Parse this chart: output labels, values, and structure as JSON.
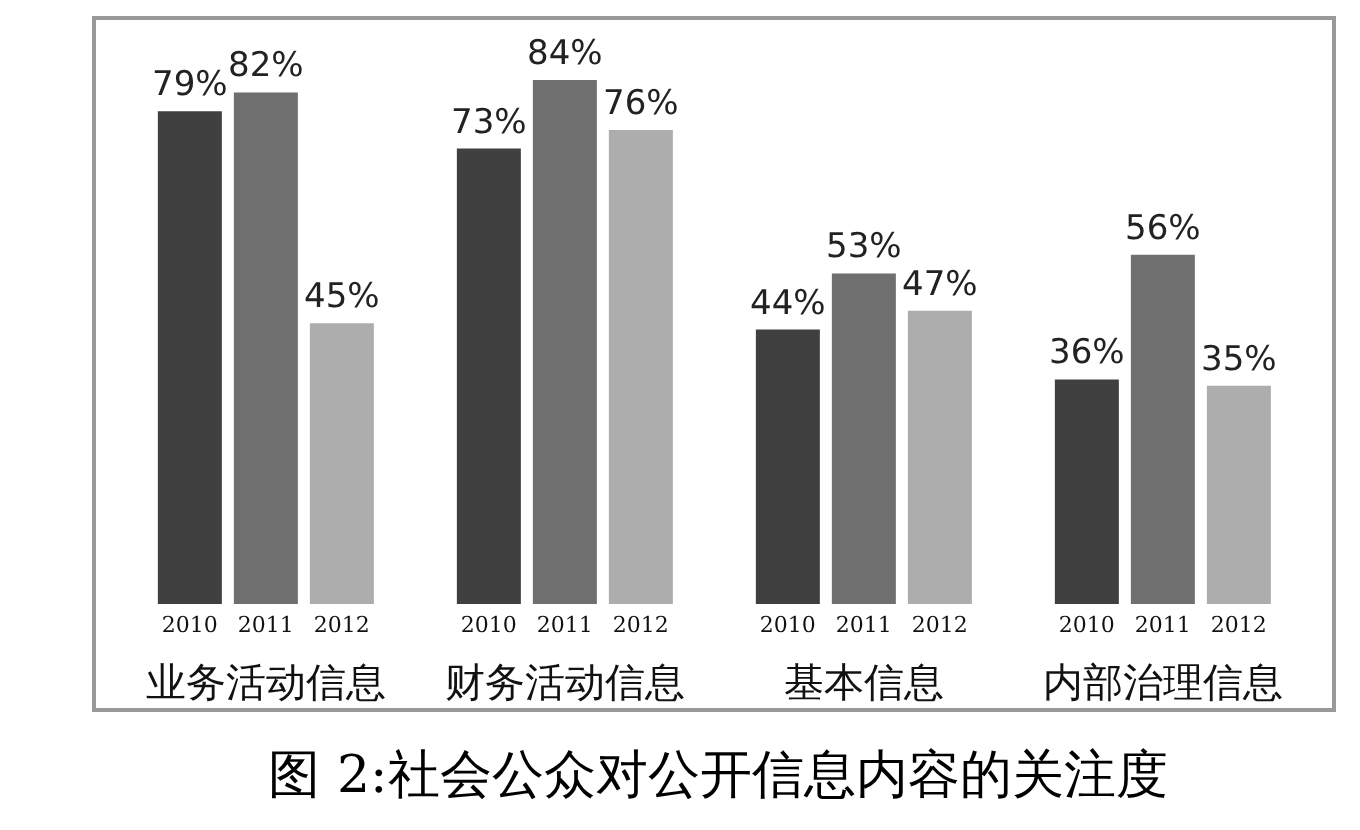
{
  "chart_data": {
    "type": "bar",
    "title": "图 2:社会公众对公开信息内容的关注度",
    "categories": [
      "业务活动信息",
      "财务活动信息",
      "基本信息",
      "内部治理信息"
    ],
    "series": [
      {
        "name": "2010",
        "color": "#404040",
        "values": [
          79,
          73,
          44,
          36
        ],
        "value_labels": [
          "79%",
          "73%",
          "44%",
          "36%"
        ]
      },
      {
        "name": "2011",
        "color": "#6f6f6f",
        "values": [
          82,
          84,
          53,
          56
        ],
        "value_labels": [
          "82%",
          "84%",
          "53%",
          "56%"
        ]
      },
      {
        "name": "2012",
        "color": "#adadad",
        "values": [
          45,
          76,
          47,
          35
        ],
        "value_labels": [
          "45%",
          "76%",
          "47%",
          "35%"
        ]
      }
    ]
  }
}
